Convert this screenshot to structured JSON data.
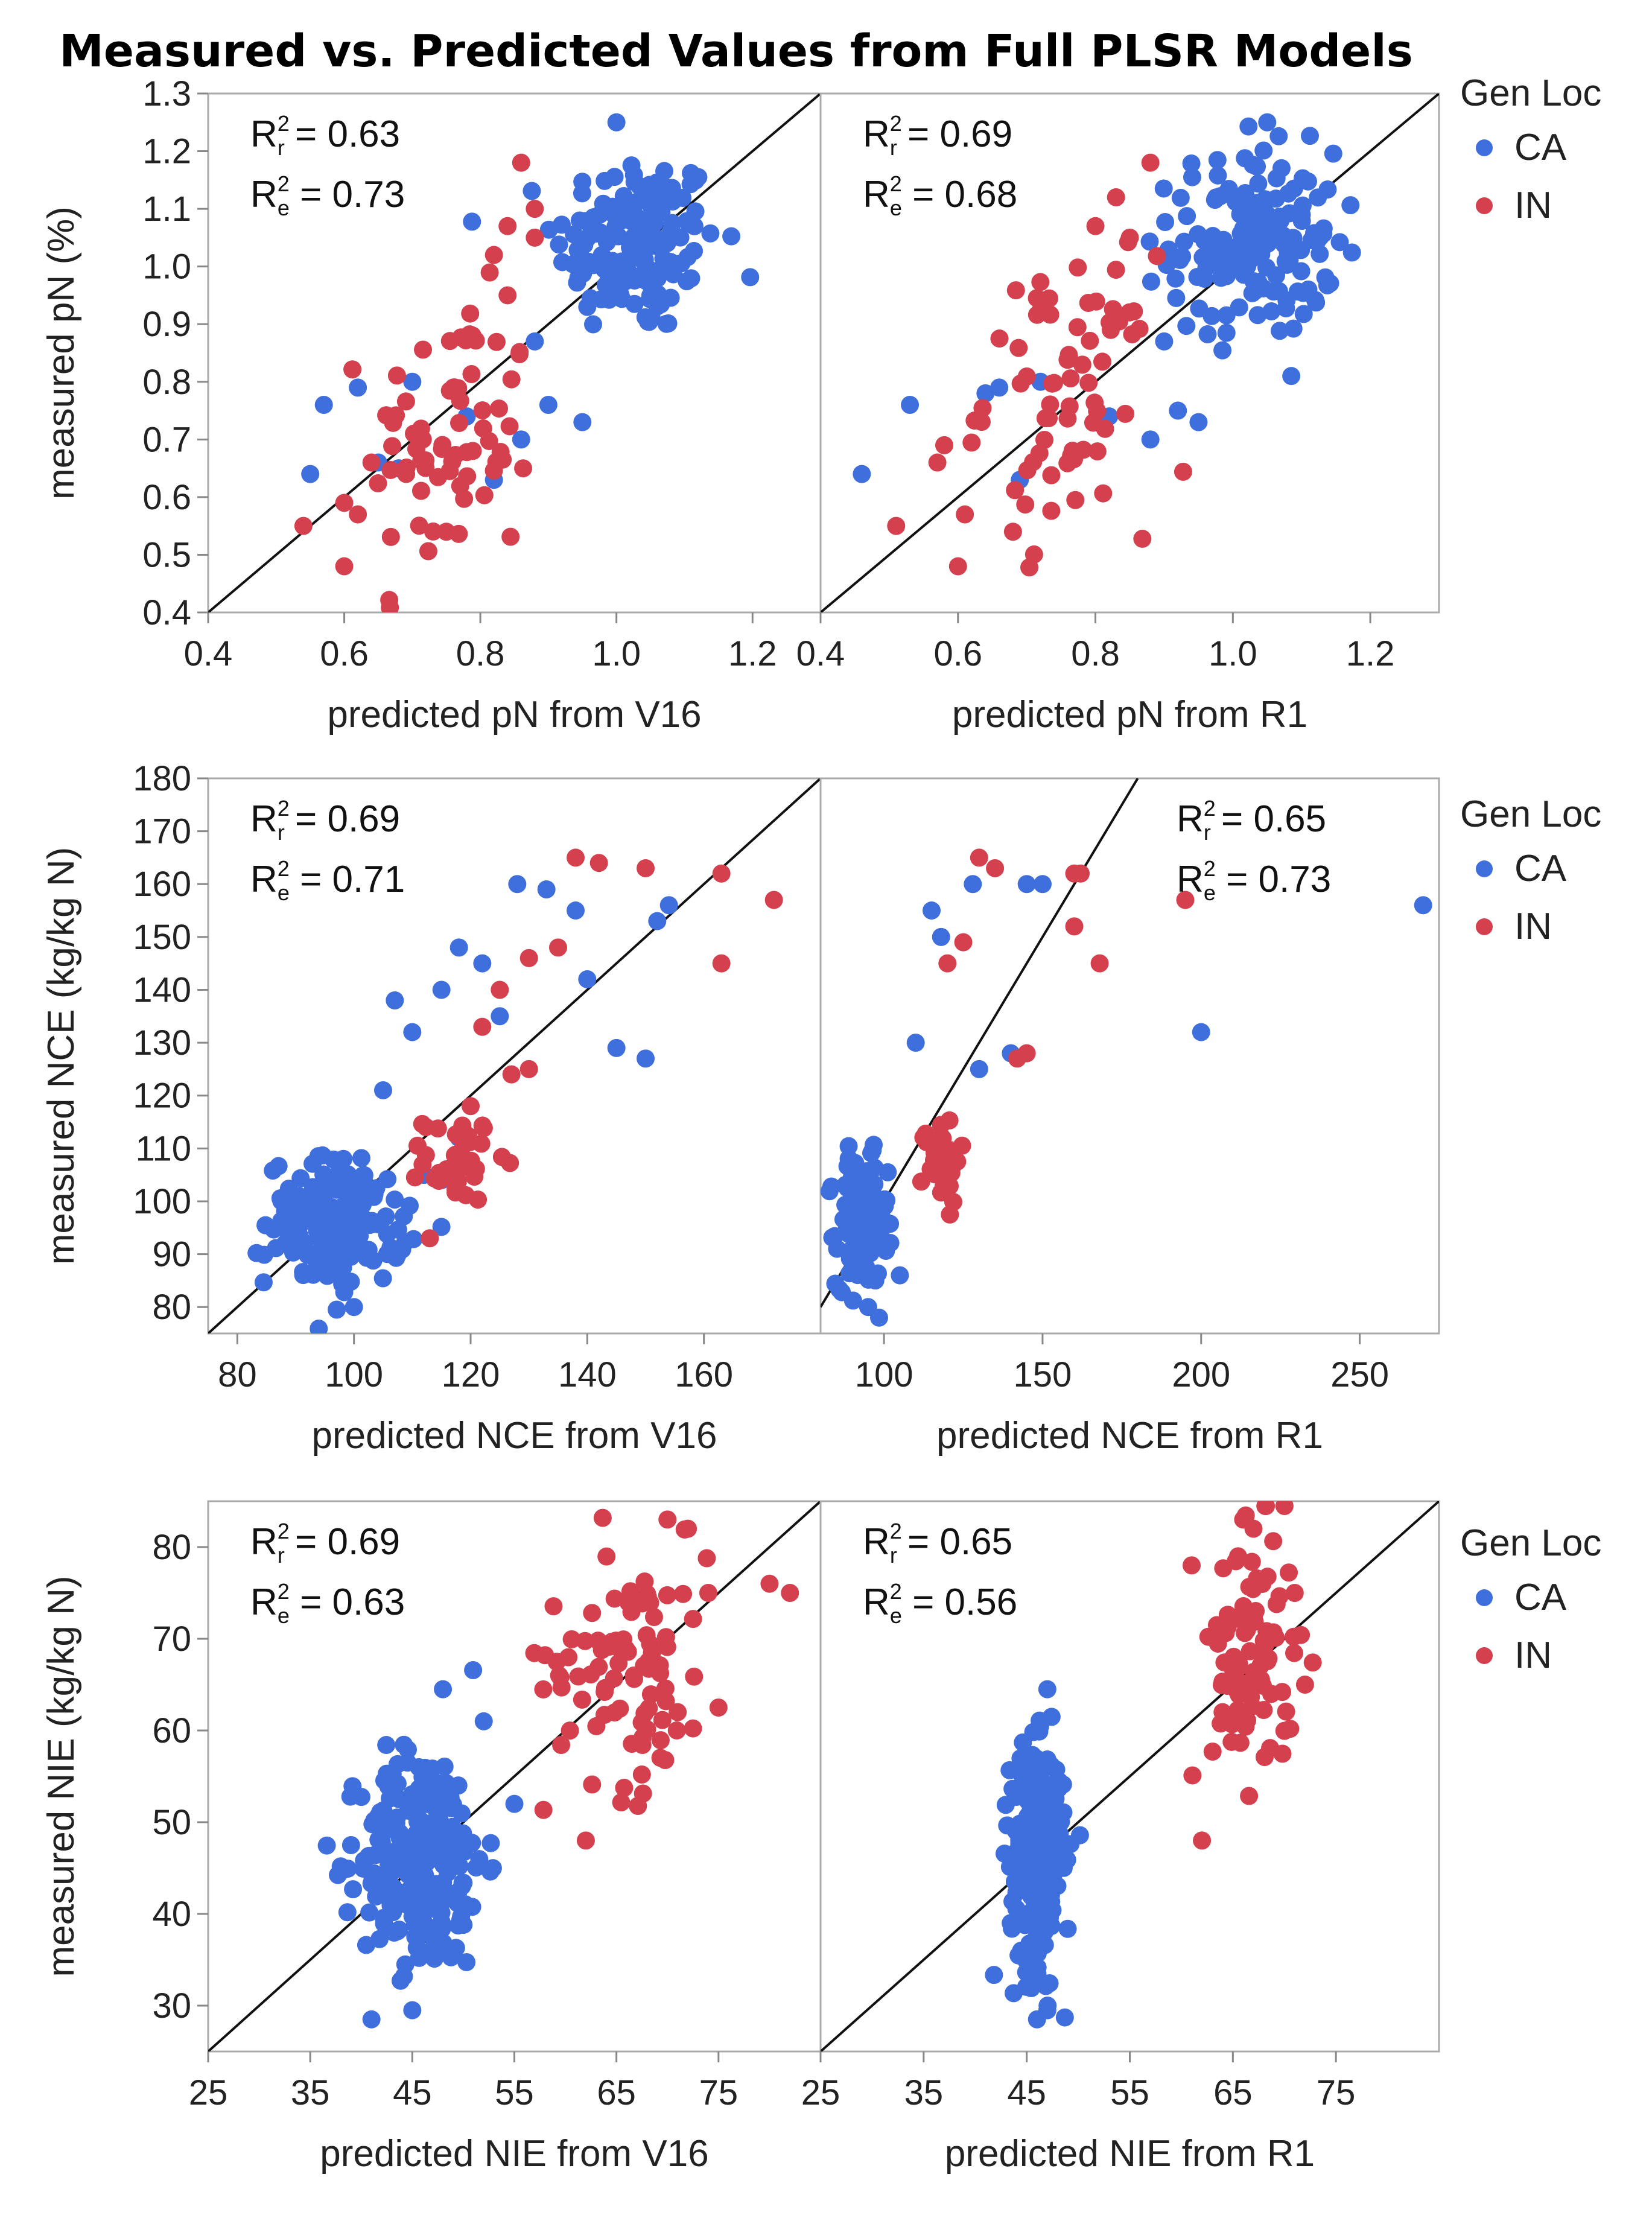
{
  "title": "Measured vs. Predicted Values from Full PLSR Models",
  "legend": {
    "title": "Gen Loc",
    "entries": [
      {
        "label": "CA",
        "color": "#3f6fdc"
      },
      {
        "label": "IN",
        "color": "#d5404f"
      }
    ]
  },
  "chart_data": [
    {
      "type": "scatter",
      "panel": "pN-V16",
      "xlabel": "predicted pN from V16",
      "ylabel": "measured pN (%)",
      "xlim": [
        0.4,
        1.3
      ],
      "ylim": [
        0.4,
        1.3
      ],
      "xticks": [
        "0.4",
        "0.6",
        "0.8",
        "1.0",
        "1.2"
      ],
      "yticks": [
        "0.4",
        "0.5",
        "0.6",
        "0.7",
        "0.8",
        "0.9",
        "1.0",
        "1.1",
        "1.2",
        "1.3"
      ],
      "stats": {
        "r": "R²r = 0.63",
        "e": "R²e = 0.73",
        "r_value": "0.63",
        "e_value": "0.73"
      },
      "reference_line": "y = x",
      "series": [
        {
          "name": "CA",
          "cluster_center": [
            1.03,
            1.04
          ],
          "spread": [
            0.06,
            0.08
          ],
          "n": 160,
          "extra_points": [
            [
              0.57,
              0.76
            ],
            [
              0.55,
              0.64
            ],
            [
              0.62,
              0.79
            ],
            [
              0.65,
              0.66
            ],
            [
              0.7,
              0.8
            ],
            [
              0.68,
              0.65
            ],
            [
              0.78,
              0.74
            ],
            [
              0.82,
              0.63
            ],
            [
              0.86,
              0.7
            ],
            [
              0.9,
              0.76
            ],
            [
              0.95,
              0.73
            ],
            [
              0.88,
              0.87
            ],
            [
              1.0,
              1.25
            ]
          ]
        },
        {
          "name": "IN",
          "cluster_center": [
            0.76,
            0.7
          ],
          "spread": [
            0.06,
            0.12
          ],
          "n": 70,
          "extra_points": [
            [
              0.54,
              0.55
            ],
            [
              0.6,
              0.48
            ],
            [
              0.62,
              0.57
            ],
            [
              0.86,
              1.18
            ],
            [
              0.88,
              1.1
            ],
            [
              0.84,
              1.07
            ],
            [
              0.88,
              1.05
            ],
            [
              0.82,
              1.02
            ],
            [
              0.84,
              0.95
            ],
            [
              0.64,
              0.66
            ],
            [
              0.6,
              0.59
            ],
            [
              0.75,
              0.54
            ]
          ]
        }
      ]
    },
    {
      "type": "scatter",
      "panel": "pN-R1",
      "xlabel": "predicted pN from R1",
      "ylabel": "",
      "xlim": [
        0.4,
        1.3
      ],
      "ylim": [
        0.4,
        1.3
      ],
      "xticks": [
        "0.4",
        "0.6",
        "0.8",
        "1.0",
        "1.2"
      ],
      "stats": {
        "r": "R²r = 0.69",
        "e": "R²e = 0.68",
        "r_value": "0.69",
        "e_value": "0.68"
      },
      "reference_line": "y = x",
      "series": [
        {
          "name": "CA",
          "cluster_center": [
            1.03,
            1.04
          ],
          "spread": [
            0.06,
            0.08
          ],
          "n": 160,
          "extra_points": [
            [
              0.46,
              0.64
            ],
            [
              0.53,
              0.76
            ],
            [
              0.64,
              0.78
            ],
            [
              0.66,
              0.79
            ],
            [
              0.69,
              0.63
            ],
            [
              0.72,
              0.8
            ],
            [
              0.82,
              0.74
            ],
            [
              0.88,
              0.7
            ],
            [
              0.92,
              0.75
            ],
            [
              0.95,
              0.73
            ],
            [
              0.9,
              0.87
            ],
            [
              1.05,
              1.25
            ]
          ]
        },
        {
          "name": "IN",
          "cluster_center": [
            0.76,
            0.78
          ],
          "spread": [
            0.06,
            0.12
          ],
          "n": 70,
          "extra_points": [
            [
              0.51,
              0.55
            ],
            [
              0.6,
              0.48
            ],
            [
              0.61,
              0.57
            ],
            [
              0.88,
              1.18
            ],
            [
              0.83,
              1.12
            ],
            [
              0.8,
              1.07
            ],
            [
              0.85,
              1.05
            ],
            [
              0.57,
              0.66
            ],
            [
              0.58,
              0.69
            ],
            [
              0.68,
              0.54
            ]
          ]
        }
      ]
    },
    {
      "type": "scatter",
      "panel": "NCE-V16",
      "xlabel": "predicted NCE from V16",
      "ylabel": "measured NCE (kg/kg N)",
      "xlim": [
        75,
        180
      ],
      "ylim": [
        75,
        180
      ],
      "xticks": [
        "80",
        "100",
        "120",
        "140",
        "160"
      ],
      "yticks": [
        "80",
        "90",
        "100",
        "110",
        "120",
        "130",
        "140",
        "150",
        "160",
        "170",
        "180"
      ],
      "stats": {
        "r": "R²r = 0.69",
        "e": "R²e = 0.71",
        "r_value": "0.69",
        "e_value": "0.71"
      },
      "reference_line": "y = x",
      "series": [
        {
          "name": "CA",
          "cluster_center": [
            97,
            96
          ],
          "spread": [
            6,
            6
          ],
          "n": 170,
          "extra_points": [
            [
              100,
              80
            ],
            [
              105,
              121
            ],
            [
              107,
              138
            ],
            [
              110,
              132
            ],
            [
              115,
              140
            ],
            [
              118,
              148
            ],
            [
              122,
              145
            ],
            [
              125,
              135
            ],
            [
              128,
              160
            ],
            [
              133,
              159
            ],
            [
              138,
              155
            ],
            [
              145,
              129
            ],
            [
              150,
              127
            ],
            [
              152,
              153
            ],
            [
              154,
              156
            ],
            [
              140,
              142
            ],
            [
              118,
              112
            ],
            [
              112,
              105
            ]
          ]
        },
        {
          "name": "IN",
          "cluster_center": [
            118,
            108
          ],
          "spread": [
            3,
            4
          ],
          "n": 40,
          "extra_points": [
            [
              138,
              165
            ],
            [
              142,
              164
            ],
            [
              150,
              163
            ],
            [
              163,
              162
            ],
            [
              172,
              157
            ],
            [
              163,
              145
            ],
            [
              135,
              148
            ],
            [
              130,
              146
            ],
            [
              125,
              140
            ],
            [
              122,
              133
            ],
            [
              130,
              125
            ],
            [
              127,
              124
            ],
            [
              120,
              118
            ],
            [
              113,
              93
            ]
          ]
        }
      ]
    },
    {
      "type": "scatter",
      "panel": "NCE-R1",
      "xlabel": "predicted NCE from R1",
      "ylabel": "",
      "xlim": [
        80,
        275
      ],
      "ylim": [
        75,
        180
      ],
      "xticks": [
        "100",
        "150",
        "200",
        "250"
      ],
      "stats": {
        "r": "R²r = 0.65",
        "e": "R²e = 0.73",
        "r_value": "0.65",
        "e_value": "0.73"
      },
      "reference_line": "y = x",
      "series": [
        {
          "name": "CA",
          "cluster_center": [
            93,
            96
          ],
          "spread": [
            4,
            6
          ],
          "n": 170,
          "extra_points": [
            [
              95,
              80
            ],
            [
              105,
              86
            ],
            [
              110,
              130
            ],
            [
              115,
              155
            ],
            [
              118,
              150
            ],
            [
              128,
              160
            ],
            [
              130,
              125
            ],
            [
              140,
              128
            ],
            [
              145,
              160
            ],
            [
              150,
              160
            ],
            [
              200,
              132
            ],
            [
              270,
              156
            ]
          ]
        },
        {
          "name": "IN",
          "cluster_center": [
            118,
            108
          ],
          "spread": [
            3,
            4
          ],
          "n": 40,
          "extra_points": [
            [
              130,
              165
            ],
            [
              135,
              163
            ],
            [
              160,
              162
            ],
            [
              162,
              162
            ],
            [
              195,
              157
            ],
            [
              168,
              145
            ],
            [
              160,
              152
            ],
            [
              125,
              149
            ],
            [
              120,
              145
            ],
            [
              142,
              127
            ],
            [
              145,
              128
            ]
          ]
        }
      ]
    },
    {
      "type": "scatter",
      "panel": "NIE-V16",
      "xlabel": "predicted NIE from V16",
      "ylabel": "measured NIE (kg/kg N)",
      "xlim": [
        25,
        85
      ],
      "ylim": [
        25,
        85
      ],
      "xticks": [
        "25",
        "35",
        "45",
        "55",
        "65",
        "75"
      ],
      "yticks": [
        "30",
        "40",
        "50",
        "60",
        "70",
        "80"
      ],
      "stats": {
        "r": "R²r = 0.69",
        "e": "R²e = 0.63",
        "r_value": "0.69",
        "e_value": "0.63"
      },
      "reference_line": "y = x",
      "series": [
        {
          "name": "CA",
          "cluster_center": [
            46,
            46
          ],
          "spread": [
            3,
            6
          ],
          "n": 260,
          "extra_points": [
            [
              41,
              28.5
            ],
            [
              45,
              29.5
            ],
            [
              48,
              64.5
            ],
            [
              55,
              52
            ],
            [
              39,
              47.5
            ],
            [
              52,
              61
            ]
          ]
        },
        {
          "name": "IN",
          "cluster_center": [
            66,
            68
          ],
          "spread": [
            4,
            7
          ],
          "n": 90,
          "extra_points": [
            [
              62,
              48
            ],
            [
              70,
              83
            ],
            [
              72,
              82
            ],
            [
              80,
              76
            ],
            [
              82,
              75
            ],
            [
              74,
              75
            ],
            [
              75,
              62.5
            ],
            [
              71,
              62
            ]
          ]
        }
      ]
    },
    {
      "type": "scatter",
      "panel": "NIE-R1",
      "xlabel": "predicted NIE from R1",
      "ylabel": "",
      "xlim": [
        25,
        85
      ],
      "ylim": [
        25,
        85
      ],
      "xticks": [
        "25",
        "35",
        "45",
        "55",
        "65",
        "75"
      ],
      "stats": {
        "r": "R²r = 0.65",
        "e": "R²e = 0.56",
        "r_value": "0.65",
        "e_value": "0.56"
      },
      "reference_line": "y = x",
      "series": [
        {
          "name": "CA",
          "cluster_center": [
            46,
            46
          ],
          "spread": [
            1.3,
            6
          ],
          "n": 260,
          "extra_points": [
            [
              46,
              28.5
            ],
            [
              47,
              29.5
            ],
            [
              47,
              64.5
            ]
          ]
        },
        {
          "name": "IN",
          "cluster_center": [
            67,
            68
          ],
          "spread": [
            2,
            7
          ],
          "n": 90,
          "extra_points": [
            [
              62,
              48
            ],
            [
              66,
              83
            ],
            [
              67,
              82
            ],
            [
              61,
              78
            ],
            [
              71,
              75
            ],
            [
              72,
              65
            ],
            [
              64,
              62
            ]
          ]
        }
      ]
    }
  ]
}
